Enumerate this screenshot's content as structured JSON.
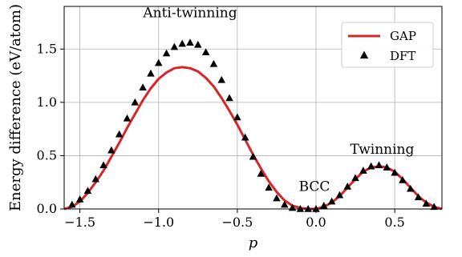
{
  "chart_data": {
    "type": "line",
    "xlabel": "p",
    "ylabel": "Energy difference (eV/atom)",
    "xlim": [
      -1.6,
      0.8
    ],
    "ylim": [
      0.0,
      1.9
    ],
    "grid": true,
    "legend_position": "top-right",
    "x_ticks": [
      {
        "value": -1.5,
        "label": "−1.5"
      },
      {
        "value": -1.0,
        "label": "−1.0"
      },
      {
        "value": -0.5,
        "label": "−0.5"
      },
      {
        "value": 0.0,
        "label": "0.0"
      },
      {
        "value": 0.5,
        "label": "0.5"
      }
    ],
    "y_ticks": [
      {
        "value": 0.0,
        "label": "0.0"
      },
      {
        "value": 0.5,
        "label": "0.5"
      },
      {
        "value": 1.0,
        "label": "1.0"
      },
      {
        "value": 1.5,
        "label": "1.5"
      }
    ],
    "series": [
      {
        "name": "GAP",
        "kind": "line",
        "color": "#d62728",
        "x": [
          -1.6,
          -1.55,
          -1.5,
          -1.45,
          -1.4,
          -1.35,
          -1.3,
          -1.25,
          -1.2,
          -1.15,
          -1.1,
          -1.05,
          -1.0,
          -0.95,
          -0.9,
          -0.85,
          -0.8,
          -0.75,
          -0.7,
          -0.65,
          -0.6,
          -0.55,
          -0.5,
          -0.45,
          -0.4,
          -0.35,
          -0.3,
          -0.25,
          -0.2,
          -0.15,
          -0.1,
          -0.05,
          0.0,
          0.05,
          0.1,
          0.15,
          0.2,
          0.25,
          0.3,
          0.35,
          0.4,
          0.45,
          0.5,
          0.55,
          0.6,
          0.65,
          0.7,
          0.75,
          0.8
        ],
        "y": [
          0.0,
          0.02,
          0.07,
          0.15,
          0.25,
          0.36,
          0.49,
          0.62,
          0.76,
          0.89,
          1.02,
          1.13,
          1.22,
          1.28,
          1.32,
          1.33,
          1.32,
          1.29,
          1.23,
          1.15,
          1.04,
          0.92,
          0.79,
          0.65,
          0.51,
          0.38,
          0.26,
          0.16,
          0.08,
          0.03,
          0.01,
          0.0,
          0.0,
          0.02,
          0.06,
          0.12,
          0.2,
          0.28,
          0.35,
          0.39,
          0.4,
          0.39,
          0.35,
          0.28,
          0.2,
          0.12,
          0.06,
          0.02,
          0.0
        ]
      },
      {
        "name": "DFT",
        "kind": "scatter",
        "marker": "triangle",
        "color": "#000000",
        "x": [
          -1.55,
          -1.5,
          -1.45,
          -1.4,
          -1.35,
          -1.3,
          -1.25,
          -1.2,
          -1.15,
          -1.1,
          -1.05,
          -1.0,
          -0.95,
          -0.9,
          -0.85,
          -0.8,
          -0.75,
          -0.7,
          -0.65,
          -0.6,
          -0.55,
          -0.5,
          -0.45,
          -0.4,
          -0.35,
          -0.3,
          -0.25,
          -0.2,
          -0.15,
          -0.1,
          -0.05,
          0.0,
          0.05,
          0.1,
          0.15,
          0.2,
          0.25,
          0.3,
          0.35,
          0.4,
          0.45,
          0.5,
          0.55,
          0.6,
          0.65,
          0.7,
          0.75
        ],
        "y": [
          0.04,
          0.09,
          0.17,
          0.28,
          0.41,
          0.55,
          0.7,
          0.85,
          1.0,
          1.14,
          1.27,
          1.37,
          1.46,
          1.52,
          1.55,
          1.56,
          1.54,
          1.47,
          1.36,
          1.21,
          1.04,
          0.86,
          0.67,
          0.49,
          0.33,
          0.2,
          0.1,
          0.04,
          0.01,
          0.0,
          0.0,
          0.0,
          0.03,
          0.07,
          0.13,
          0.21,
          0.29,
          0.36,
          0.4,
          0.41,
          0.39,
          0.34,
          0.27,
          0.19,
          0.11,
          0.05,
          0.02
        ]
      }
    ],
    "annotations": [
      {
        "text": "Anti-twinning",
        "x": -0.8,
        "y": 1.8
      },
      {
        "text": "Twinning",
        "x": 0.42,
        "y": 0.52
      },
      {
        "text": "BCC",
        "x": -0.01,
        "y": 0.17
      }
    ]
  }
}
